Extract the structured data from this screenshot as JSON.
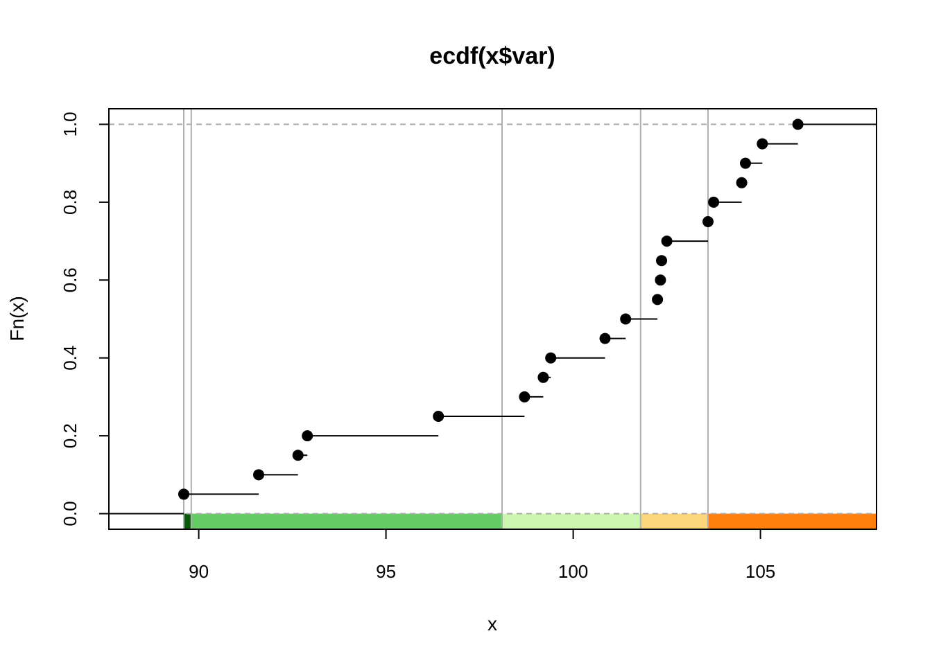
{
  "chart_data": {
    "type": "line",
    "subtype": "ecdf",
    "title": "ecdf(x$var)",
    "xlabel": "x",
    "ylabel": "Fn(x)",
    "xlim": [
      87.6,
      108.1
    ],
    "ylim": [
      -0.04,
      1.04
    ],
    "xticks": [
      90,
      95,
      100,
      105
    ],
    "yticks": [
      0.0,
      0.2,
      0.4,
      0.6,
      0.8,
      1.0
    ],
    "xtick_labels": [
      "90",
      "95",
      "100",
      "105"
    ],
    "ytick_labels": [
      "0.0",
      "0.2",
      "0.4",
      "0.6",
      "0.8",
      "1.0"
    ],
    "points": [
      {
        "x": 89.6,
        "y": 0.05
      },
      {
        "x": 91.6,
        "y": 0.1
      },
      {
        "x": 92.65,
        "y": 0.15
      },
      {
        "x": 92.9,
        "y": 0.2
      },
      {
        "x": 96.4,
        "y": 0.25
      },
      {
        "x": 98.7,
        "y": 0.3
      },
      {
        "x": 99.2,
        "y": 0.35
      },
      {
        "x": 99.4,
        "y": 0.4
      },
      {
        "x": 100.85,
        "y": 0.45
      },
      {
        "x": 101.4,
        "y": 0.5
      },
      {
        "x": 102.25,
        "y": 0.55
      },
      {
        "x": 102.33,
        "y": 0.6
      },
      {
        "x": 102.36,
        "y": 0.65
      },
      {
        "x": 102.5,
        "y": 0.7
      },
      {
        "x": 103.6,
        "y": 0.75
      },
      {
        "x": 103.75,
        "y": 0.8
      },
      {
        "x": 104.5,
        "y": 0.85
      },
      {
        "x": 104.6,
        "y": 0.9
      },
      {
        "x": 105.05,
        "y": 0.95
      },
      {
        "x": 106.0,
        "y": 1.0
      }
    ],
    "reference_lines_y": [
      0.0,
      1.0
    ],
    "vertical_lines_x": [
      89.6,
      89.8,
      98.1,
      101.8,
      103.6
    ],
    "color_bands": [
      {
        "from": 89.6,
        "to": 89.8,
        "color": "#0b5a0b"
      },
      {
        "from": 89.8,
        "to": 98.1,
        "color": "#66cc66"
      },
      {
        "from": 98.1,
        "to": 101.8,
        "color": "#ccf5b0"
      },
      {
        "from": 101.8,
        "to": 103.6,
        "color": "#fdd57a"
      },
      {
        "from": 103.6,
        "to": 108.1,
        "color": "#ff7f0e"
      }
    ],
    "colors": {
      "points": "#000000",
      "reference_lines": "#aaaaaa",
      "vertical_lines": "#b0b0b0"
    },
    "grid": false
  }
}
